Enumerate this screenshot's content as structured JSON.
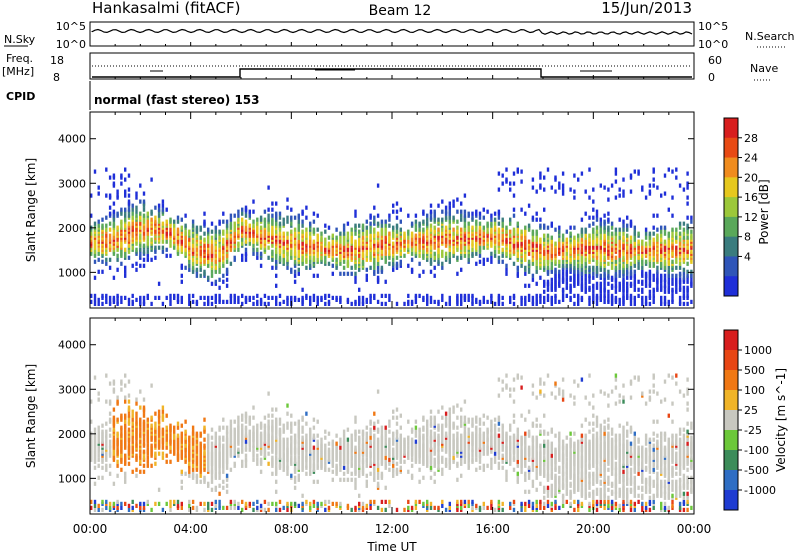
{
  "header": {
    "station": "Hankasalmi (fitACF)",
    "beam": "Beam 12",
    "date": "15/Jun/2013"
  },
  "noise_panel": {
    "left_label": "N.Sky",
    "right_label": "N.Search",
    "left_ticks": [
      "10^5",
      "10^0"
    ],
    "right_ticks": [
      "10^5",
      "10^0"
    ]
  },
  "freq_panel": {
    "left_label_top": "Freq.",
    "left_label_unit": "[MHz]",
    "left_ticks": [
      "18",
      "8"
    ],
    "right_label": "Nave",
    "right_ticks": [
      "60",
      "0"
    ]
  },
  "cpid": {
    "label": "CPID",
    "text": "normal (fast stereo) 153"
  },
  "chart_data": [
    {
      "type": "heatmap",
      "name": "power",
      "xlabel": "",
      "ylabel": "Slant Range [km]",
      "x_ticks": [
        "00:00",
        "04:00",
        "08:00",
        "12:00",
        "16:00",
        "20:00",
        "00:00"
      ],
      "x_range_hours": [
        0,
        24
      ],
      "y_ticks": [
        1000,
        2000,
        3000,
        4000
      ],
      "ylim": [
        200,
        4600
      ],
      "colorbar": {
        "label": "Power [dB]",
        "ticks": [
          4,
          8,
          12,
          16,
          20,
          24,
          28
        ],
        "colors": [
          "#1f2fd8",
          "#2f55b8",
          "#3a7c7e",
          "#5aa85a",
          "#9cc83a",
          "#e6c81e",
          "#f08c1e",
          "#e84a14",
          "#d81e1e"
        ]
      },
      "grid": false
    },
    {
      "type": "heatmap",
      "name": "velocity",
      "xlabel": "Time UT",
      "ylabel": "Slant Range [km]",
      "x_ticks": [
        "00:00",
        "04:00",
        "08:00",
        "12:00",
        "16:00",
        "20:00",
        "00:00"
      ],
      "x_range_hours": [
        0,
        24
      ],
      "y_ticks": [
        1000,
        2000,
        3000,
        4000
      ],
      "ylim": [
        200,
        4600
      ],
      "colorbar": {
        "label": "Velocity [m s^-1]",
        "ticks": [
          "1000",
          "500",
          "100",
          "25",
          "-25",
          "-100",
          "-500",
          "-1000"
        ],
        "colors": [
          "#1f3cd2",
          "#2f6ec4",
          "#3c8c5a",
          "#6cc83a",
          "#c8c8c0",
          "#f0b428",
          "#f07814",
          "#e84614",
          "#d81e1e"
        ]
      },
      "grid": false
    }
  ]
}
